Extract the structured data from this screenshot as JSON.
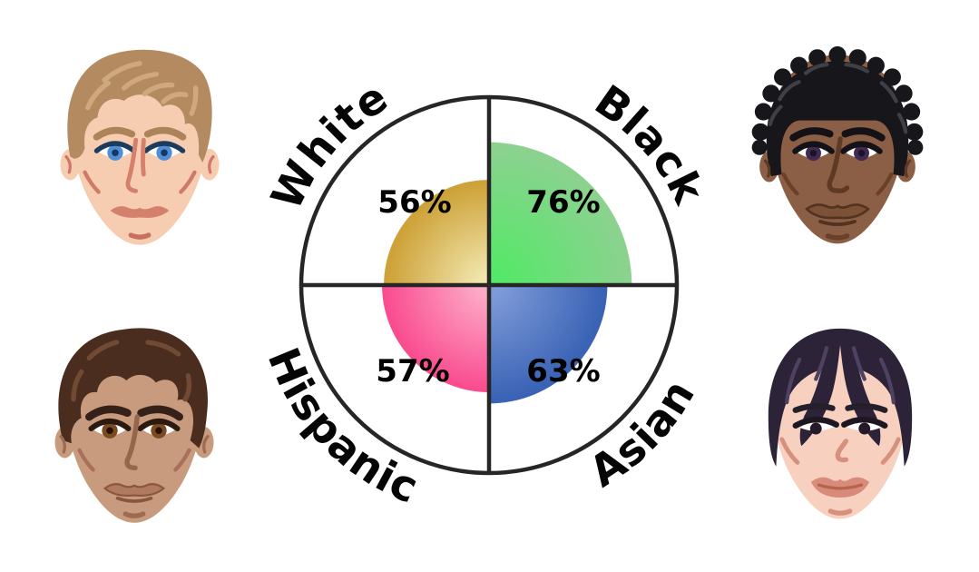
{
  "background": "#ffffff",
  "chart_data": {
    "type": "quadrant_polar_area",
    "title": "",
    "description": "Circle split into four quadrants by crosshair lines; each quadrant holds a quarter-circle wedge whose radius encodes the percentage for a demographic group; group names curve around the outside of the circle",
    "categories": [
      "White",
      "Black",
      "Hispanic",
      "Asian"
    ],
    "values": [
      56,
      76,
      57,
      63
    ],
    "max_value": 100,
    "grid": "crosshair",
    "legend_position": "curved-outside",
    "outline_color": "#262626",
    "groups": [
      {
        "name": "White",
        "value": 56,
        "pct_label": "56%",
        "quadrant": "top-left",
        "color_inner": "#f1e5ac",
        "color_outer": "#cda238"
      },
      {
        "name": "Black",
        "value": 76,
        "pct_label": "76%",
        "quadrant": "top-right",
        "color_inner": "#55e868",
        "color_outer": "#8bd28f"
      },
      {
        "name": "Hispanic",
        "value": 57,
        "pct_label": "57%",
        "quadrant": "bottom-left",
        "color_inner": "#fdaac7",
        "color_outer": "#fa4d90"
      },
      {
        "name": "Asian",
        "value": 63,
        "pct_label": "63%",
        "quadrant": "bottom-right",
        "color_inner": "#7e9ad8",
        "color_outer": "#3a63b5"
      }
    ]
  },
  "faces": [
    {
      "id": "white-man",
      "position": "top-left",
      "skin": "#f7cdb2",
      "hair": "#b48b61",
      "eye_color": "#4e8fd8"
    },
    {
      "id": "black-man",
      "position": "top-right",
      "skin": "#8b5f46",
      "hair": "#17161a",
      "eye_color": "#3f2b52"
    },
    {
      "id": "hispanic-man",
      "position": "bottom-left",
      "skin": "#c89b7e",
      "hair": "#4a2d1e",
      "eye_color": "#7b4a1f"
    },
    {
      "id": "asian-person",
      "position": "bottom-right",
      "skin": "#f8d0c0",
      "hair": "#2c2338",
      "eye_color": "#241a28"
    }
  ]
}
